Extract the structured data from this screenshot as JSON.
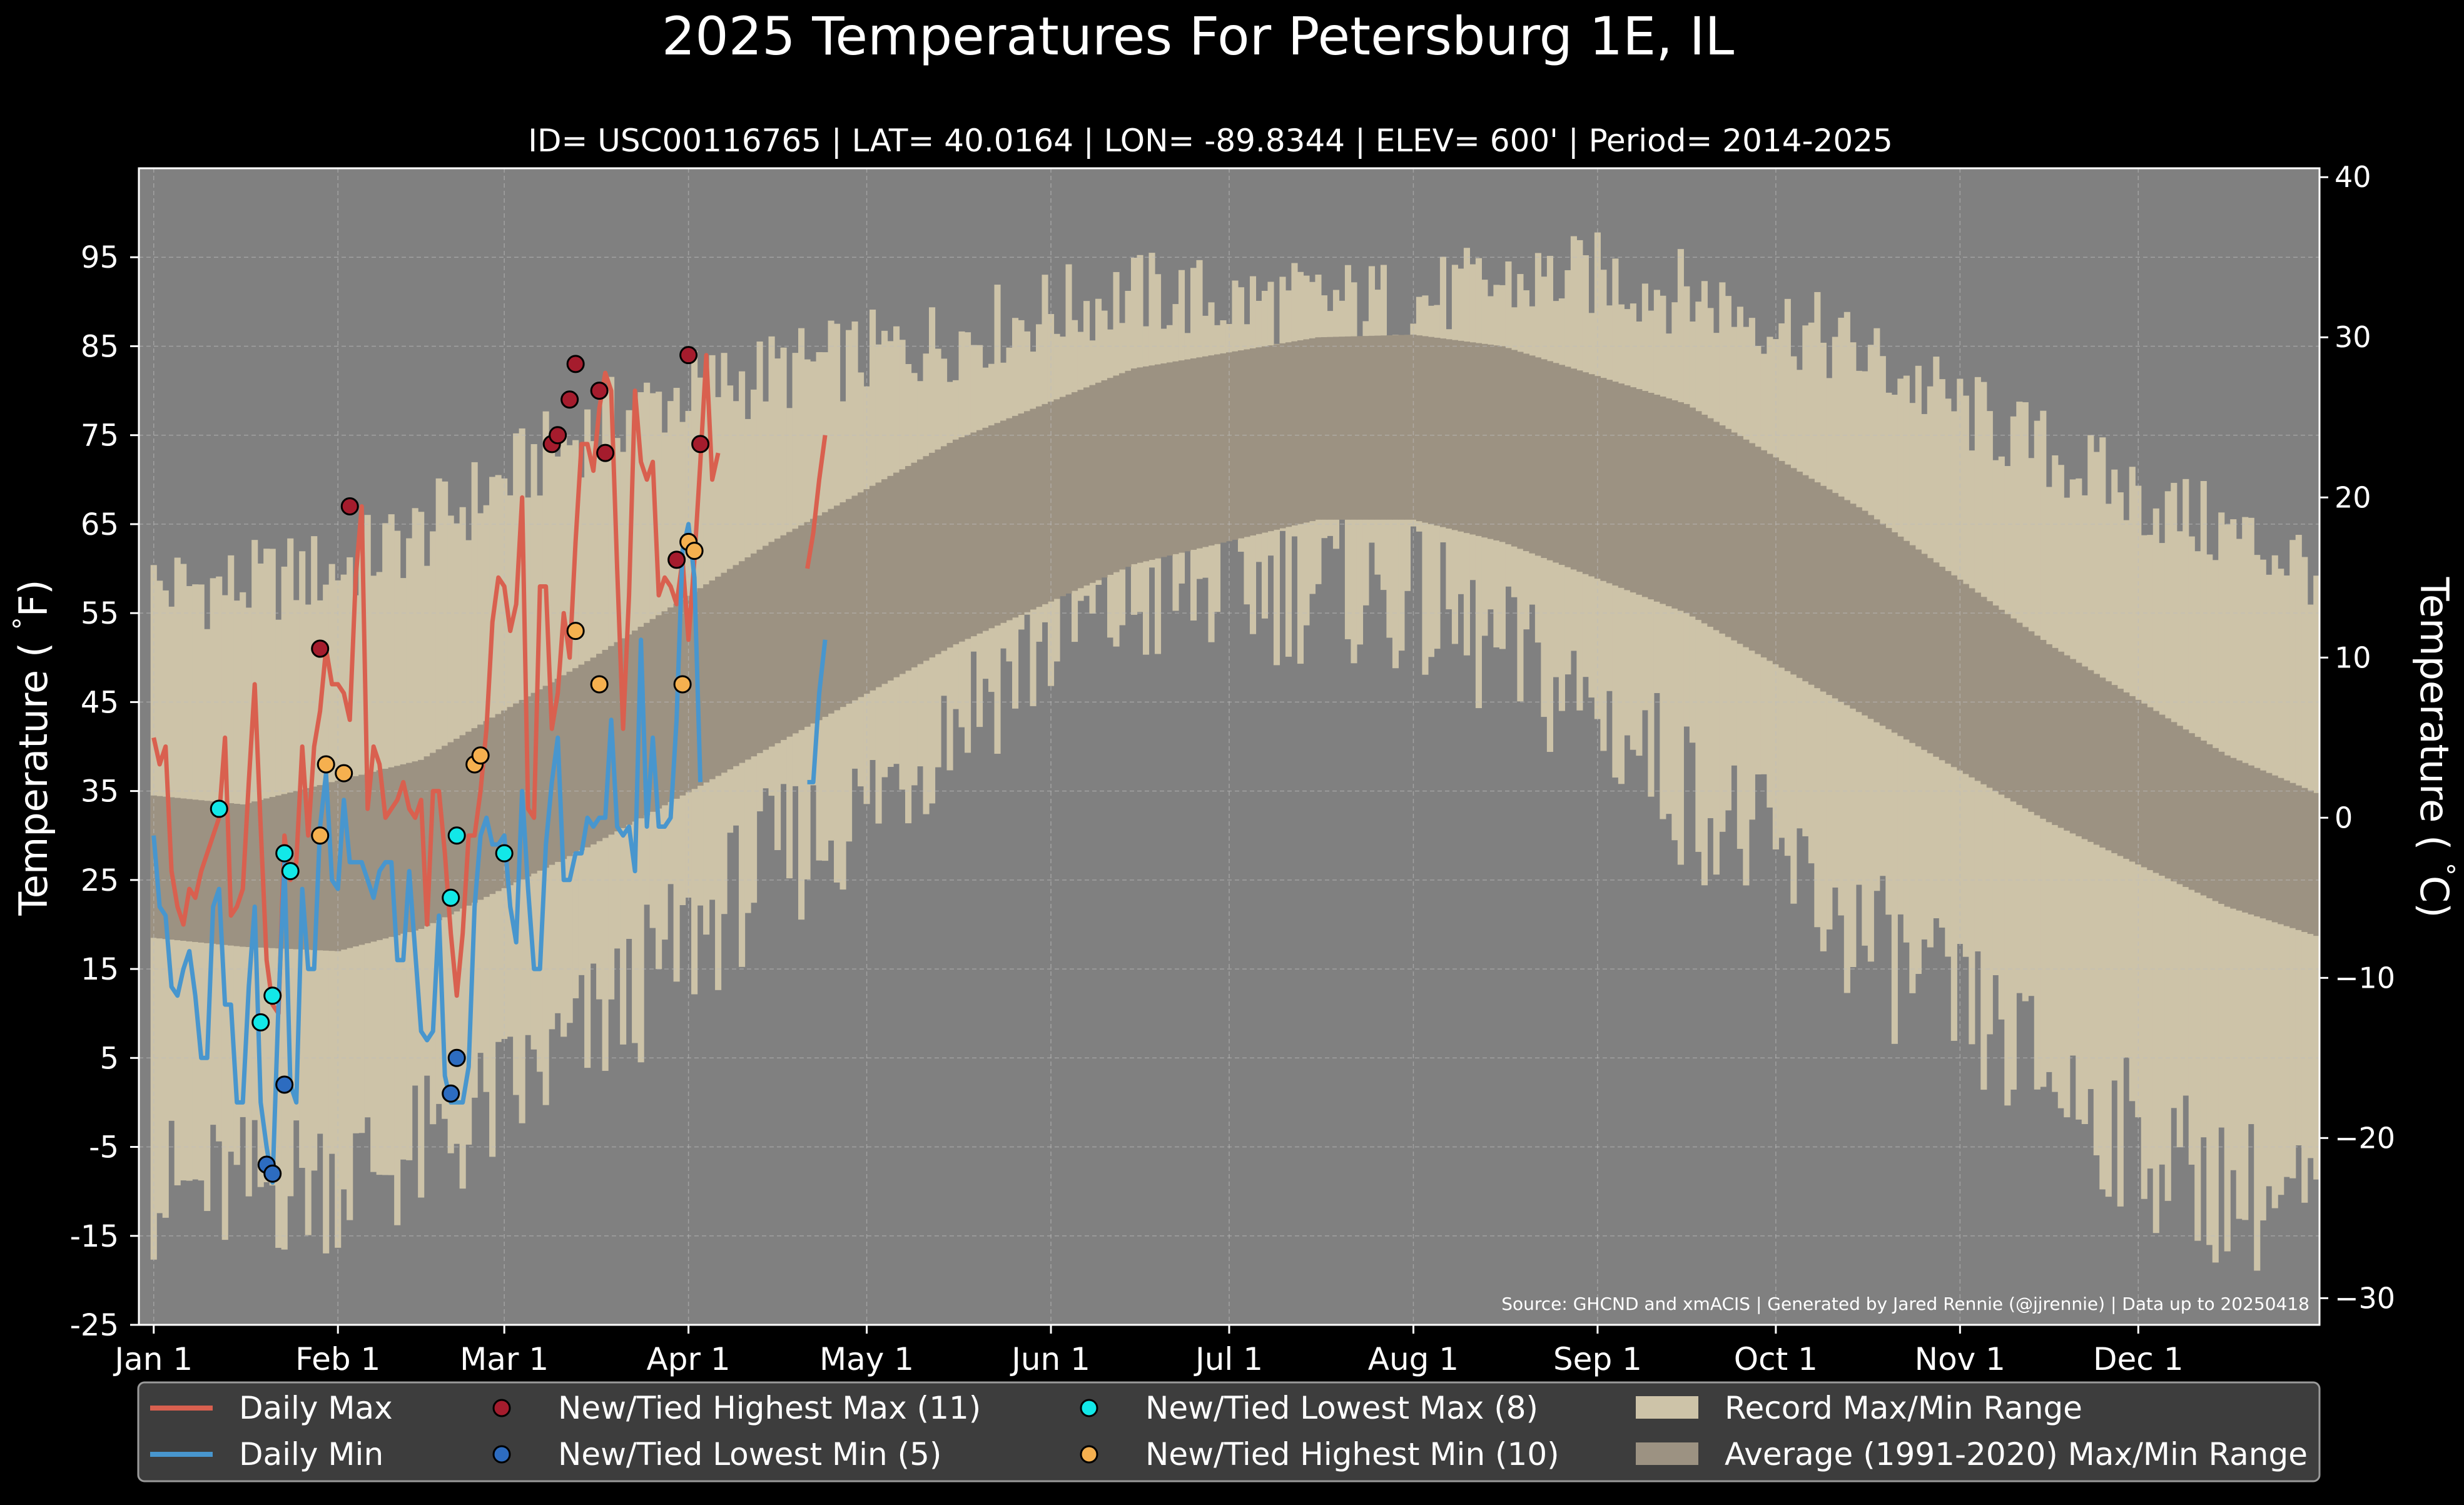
{
  "title": "2025 Temperatures For Petersburg 1E, IL",
  "subtitle": "ID= USC00116765 | LAT= 40.0164 | LON= -89.8344 | ELEV= 600' | Period= 2014-2025",
  "source_note": "Source: GHCND and xmACIS | Generated by Jared Rennie (@jjrennie) | Data up to 20250418",
  "colors": {
    "background": "#000000",
    "plot_bg": "#808080",
    "record_range": "#cdc3a8",
    "average_range": "#9c9282",
    "daily_max": "#d9604f",
    "daily_min": "#4896ce",
    "highest_max": "#a51c2d",
    "lowest_min": "#2d6cc0",
    "lowest_max": "#12e8e8",
    "highest_min": "#f5b04f",
    "legend_bg": "#3d3d3d"
  },
  "legend": {
    "daily_max": "Daily Max",
    "daily_min": "Daily Min",
    "highest_max": "New/Tied Highest Max (11)",
    "lowest_min": "New/Tied Lowest Min (5)",
    "lowest_max": "New/Tied Lowest Max (8)",
    "highest_min": "New/Tied Highest Min (10)",
    "record_range": "Record Max/Min Range",
    "average_range": "Average (1991-2020) Max/Min Range"
  },
  "chart_data": {
    "type": "line",
    "ylabel_left": "Temperature ( $^\\circ$F)",
    "ylabel_right": "Temperature ( $^\\circ$C)",
    "ylim_f": [
      -25,
      105
    ],
    "xlim_doy": [
      -1.5,
      365.5
    ],
    "y_ticks_f": [
      -25,
      -15,
      -5,
      5,
      15,
      25,
      35,
      45,
      55,
      65,
      75,
      85,
      95
    ],
    "y_ticks_c": [
      -30,
      -20,
      -10,
      0,
      10,
      20,
      30,
      40
    ],
    "x_ticks": [
      {
        "label": "Jan 1",
        "doy": 1
      },
      {
        "label": "Feb 1",
        "doy": 32
      },
      {
        "label": "Mar 1",
        "doy": 60
      },
      {
        "label": "Apr 1",
        "doy": 91
      },
      {
        "label": "May 1",
        "doy": 121
      },
      {
        "label": "Jun 1",
        "doy": 152
      },
      {
        "label": "Jul 1",
        "doy": 182
      },
      {
        "label": "Aug 1",
        "doy": 213
      },
      {
        "label": "Sep 1",
        "doy": 244
      },
      {
        "label": "Oct 1",
        "doy": 274
      },
      {
        "label": "Nov 1",
        "doy": 305
      },
      {
        "label": "Dec 1",
        "doy": 335
      }
    ],
    "grid": true,
    "legend_position": "bottom",
    "average_max_by_month": {
      "doy": [
        1,
        16,
        46,
        75,
        105,
        136,
        166,
        197,
        213,
        228,
        259,
        289,
        320,
        350,
        366
      ],
      "f": [
        34.5,
        33.5,
        38.5,
        50,
        63,
        74.5,
        82.5,
        86,
        86.3,
        85,
        78.5,
        66.5,
        51.5,
        39,
        34.5
      ]
    },
    "average_min_by_month": {
      "doy": [
        1,
        16,
        32,
        46,
        75,
        105,
        136,
        166,
        197,
        213,
        228,
        259,
        289,
        320,
        350,
        366
      ],
      "f": [
        18.5,
        17.5,
        17,
        19.5,
        29,
        40,
        51.5,
        60.5,
        65.5,
        65.5,
        63,
        55,
        43.5,
        31.5,
        22,
        18.5
      ]
    },
    "record_max_by_month": {
      "doy": [
        1,
        15,
        32,
        46,
        60,
        75,
        91,
        105,
        121,
        136,
        152,
        166,
        182,
        197,
        213,
        228,
        244,
        259,
        274,
        289,
        305,
        320,
        335,
        350,
        366
      ],
      "f": [
        58,
        58,
        60,
        64,
        70,
        76,
        80,
        82,
        84,
        86,
        89,
        91,
        90,
        90,
        90,
        92,
        93,
        91,
        88,
        84,
        78,
        73,
        68,
        64,
        60
      ]
    },
    "record_min_by_month": {
      "doy": [
        1,
        15,
        32,
        46,
        60,
        75,
        91,
        105,
        121,
        136,
        152,
        166,
        182,
        197,
        213,
        228,
        244,
        259,
        274,
        289,
        305,
        320,
        335,
        350,
        366
      ],
      "f": [
        -10,
        -10,
        -8,
        -6,
        0,
        8,
        18,
        27,
        33,
        44,
        52,
        56,
        58,
        58,
        56,
        50,
        44,
        35,
        27,
        18,
        10,
        3,
        -5,
        -10,
        -12
      ]
    },
    "series": [
      {
        "name": "Daily Max",
        "start_doy": 1,
        "values": [
          41,
          38,
          40,
          26,
          22,
          20,
          24,
          23,
          26,
          28,
          30,
          32,
          41,
          21,
          22,
          24,
          36,
          47,
          31,
          16,
          11,
          10,
          30,
          25,
          27,
          40,
          30,
          40,
          44,
          51,
          47,
          47,
          46,
          43,
          59,
          67,
          33,
          40,
          38,
          32,
          33,
          34,
          36,
          33,
          32,
          34,
          20,
          35,
          35,
          28,
          19,
          12,
          19,
          30,
          30,
          35,
          42,
          54,
          59,
          58,
          53,
          56,
          68,
          33,
          32,
          58,
          58,
          42,
          46,
          55,
          50,
          63,
          74,
          74,
          71,
          78,
          82,
          80,
          60,
          42,
          57,
          80,
          72,
          70,
          72,
          57,
          59,
          58,
          56,
          61,
          52,
          61,
          72,
          84,
          70,
          73
        ],
        "segments": [
          {
            "start_doy": 111,
            "values": [
              60,
              64,
              70,
              75
            ]
          }
        ]
      },
      {
        "name": "Daily Min",
        "start_doy": 1,
        "values": [
          30,
          22,
          21,
          13,
          12,
          15,
          17,
          12,
          5,
          5,
          22,
          24,
          11,
          11,
          0,
          0,
          13,
          22,
          0,
          -5,
          -9,
          11,
          27,
          2,
          0,
          24,
          15,
          15,
          31,
          37,
          25,
          24,
          34,
          27,
          27,
          27,
          25,
          23,
          26,
          27,
          27,
          16,
          16,
          26,
          17,
          8,
          7,
          8,
          21,
          3,
          0,
          0,
          0,
          4,
          22,
          30,
          32,
          29,
          29,
          30,
          22,
          18,
          35,
          24,
          15,
          15,
          29,
          36,
          41,
          25,
          25,
          28,
          28,
          32,
          31,
          32,
          32,
          43,
          31,
          30,
          31,
          26,
          52,
          31,
          41,
          31,
          31,
          32,
          43,
          62,
          65,
          59,
          36
        ],
        "segments": [
          {
            "start_doy": 111,
            "values": [
              36,
              36,
              46,
              52
            ]
          }
        ]
      }
    ],
    "markers": {
      "highest_max": [
        {
          "doy": 29,
          "f": 51
        },
        {
          "doy": 34,
          "f": 67
        },
        {
          "doy": 68,
          "f": 74
        },
        {
          "doy": 69,
          "f": 75
        },
        {
          "doy": 71,
          "f": 79
        },
        {
          "doy": 72,
          "f": 83
        },
        {
          "doy": 76,
          "f": 80
        },
        {
          "doy": 77,
          "f": 73
        },
        {
          "doy": 89,
          "f": 61
        },
        {
          "doy": 91,
          "f": 84
        },
        {
          "doy": 93,
          "f": 74
        }
      ],
      "lowest_min": [
        {
          "doy": 20,
          "f": -7
        },
        {
          "doy": 21,
          "f": -8
        },
        {
          "doy": 23,
          "f": 2
        },
        {
          "doy": 51,
          "f": 1
        },
        {
          "doy": 52,
          "f": 5
        }
      ],
      "lowest_max": [
        {
          "doy": 12,
          "f": 33
        },
        {
          "doy": 19,
          "f": 9
        },
        {
          "doy": 21,
          "f": 12
        },
        {
          "doy": 23,
          "f": 28
        },
        {
          "doy": 24,
          "f": 26
        },
        {
          "doy": 51,
          "f": 23
        },
        {
          "doy": 52,
          "f": 30
        },
        {
          "doy": 60,
          "f": 28
        }
      ],
      "highest_min": [
        {
          "doy": 29,
          "f": 30
        },
        {
          "doy": 30,
          "f": 38
        },
        {
          "doy": 33,
          "f": 37
        },
        {
          "doy": 55,
          "f": 38
        },
        {
          "doy": 56,
          "f": 39
        },
        {
          "doy": 72,
          "f": 53
        },
        {
          "doy": 76,
          "f": 47
        },
        {
          "doy": 90,
          "f": 47
        },
        {
          "doy": 91,
          "f": 63
        },
        {
          "doy": 92,
          "f": 62
        }
      ]
    }
  }
}
